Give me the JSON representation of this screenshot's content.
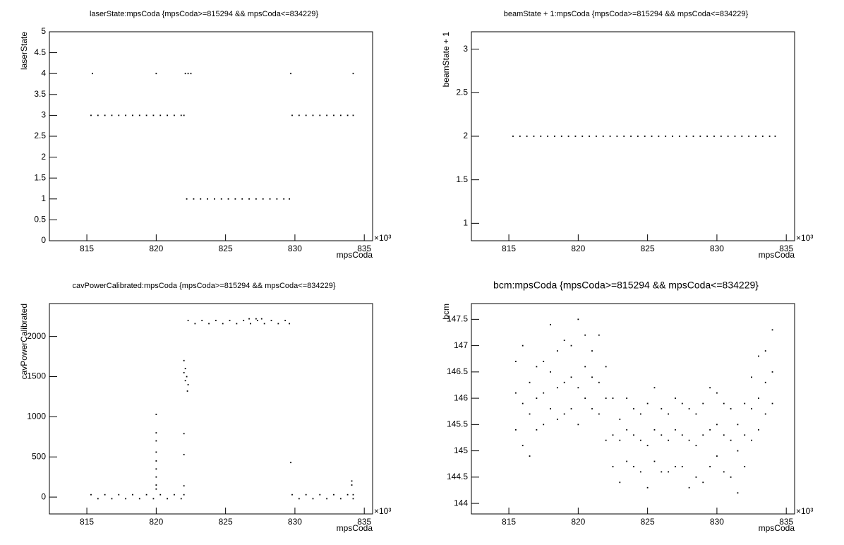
{
  "chart_data": [
    {
      "type": "scatter",
      "title": "laserState:mpsCoda {mpsCoda>=815294 && mpsCoda<=834229}",
      "x_label": "mpsCoda",
      "y_label": "laserState",
      "x_multiplier": "×10³",
      "color": "#000000",
      "xlim": [
        812.3,
        835.6
      ],
      "xticks": [
        815,
        820,
        825,
        830,
        835
      ],
      "ylim": [
        0,
        5
      ],
      "yticks": [
        0,
        0.5,
        1,
        1.5,
        2,
        2.5,
        3,
        3.5,
        4,
        4.5,
        5
      ],
      "x": [
        815.4,
        820.0,
        822.1,
        822.3,
        822.5,
        829.7,
        834.2,
        815.3,
        815.8,
        816.3,
        816.8,
        817.3,
        817.8,
        818.3,
        818.8,
        819.3,
        819.8,
        820.3,
        820.8,
        821.3,
        821.8,
        822.0,
        822.2,
        822.7,
        823.2,
        823.7,
        824.2,
        824.7,
        825.2,
        825.7,
        826.2,
        826.7,
        827.2,
        827.7,
        828.2,
        828.7,
        829.2,
        829.6,
        829.8,
        830.3,
        830.8,
        831.3,
        831.8,
        832.3,
        832.8,
        833.3,
        833.8,
        834.2
      ],
      "y": [
        4,
        4,
        4,
        4,
        4,
        4,
        4,
        3,
        3,
        3,
        3,
        3,
        3,
        3,
        3,
        3,
        3,
        3,
        3,
        3,
        3,
        3,
        1,
        1,
        1,
        1,
        1,
        1,
        1,
        1,
        1,
        1,
        1,
        1,
        1,
        1,
        1,
        1,
        3,
        3,
        3,
        3,
        3,
        3,
        3,
        3,
        3,
        3
      ]
    },
    {
      "type": "scatter",
      "title": "beamState + 1:mpsCoda {mpsCoda>=815294 && mpsCoda<=834229}",
      "x_label": "mpsCoda",
      "y_label": "beamState + 1",
      "x_multiplier": "×10³",
      "color": "#000000",
      "xlim": [
        812.3,
        835.6
      ],
      "xticks": [
        815,
        820,
        825,
        830,
        835
      ],
      "ylim": [
        0.8,
        3.2
      ],
      "yticks": [
        1,
        1.5,
        2,
        2.5,
        3
      ],
      "x": [
        815.3,
        815.8,
        816.3,
        816.8,
        817.3,
        817.8,
        818.3,
        818.8,
        819.3,
        819.8,
        820.3,
        820.8,
        821.3,
        821.8,
        822.3,
        822.8,
        823.3,
        823.8,
        824.3,
        824.8,
        825.3,
        825.8,
        826.3,
        826.8,
        827.3,
        827.8,
        828.3,
        828.8,
        829.3,
        829.8,
        830.3,
        830.8,
        831.3,
        831.8,
        832.3,
        832.8,
        833.3,
        833.8,
        834.2
      ],
      "y": [
        2,
        2,
        2,
        2,
        2,
        2,
        2,
        2,
        2,
        2,
        2,
        2,
        2,
        2,
        2,
        2,
        2,
        2,
        2,
        2,
        2,
        2,
        2,
        2,
        2,
        2,
        2,
        2,
        2,
        2,
        2,
        2,
        2,
        2,
        2,
        2,
        2,
        2,
        2
      ]
    },
    {
      "type": "scatter",
      "title": "cavPowerCalibrated:mpsCoda {mpsCoda>=815294 && mpsCoda<=834229}",
      "x_label": "mpsCoda",
      "y_label": "cavPowerCalibrated",
      "x_multiplier": "×10³",
      "color": "#000000",
      "xlim": [
        812.3,
        835.6
      ],
      "xticks": [
        815,
        820,
        825,
        830,
        835
      ],
      "ylim": [
        -210,
        2410
      ],
      "yticks": [
        0,
        500,
        1000,
        1500,
        2000
      ],
      "x": [
        815.3,
        816.3,
        817.3,
        818.3,
        819.3,
        820.3,
        821.3,
        815.8,
        816.8,
        817.8,
        818.8,
        819.8,
        820.8,
        821.8,
        822.0,
        829.8,
        830.8,
        831.8,
        832.8,
        833.8,
        830.3,
        831.3,
        832.3,
        833.3,
        834.2,
        834.2,
        822.3,
        823.3,
        824.3,
        825.3,
        826.3,
        827.3,
        828.3,
        829.3,
        822.8,
        823.8,
        824.8,
        825.8,
        826.8,
        827.8,
        828.8,
        829.6,
        826.7,
        827.2,
        827.6,
        822.0,
        822.1,
        822.2,
        822.3,
        822.25,
        822.1,
        822.0,
        820.0,
        820.0,
        820.0,
        820.0,
        820.0,
        820.0,
        820.0,
        820.0,
        820.0,
        822.0,
        822.0,
        822.0,
        829.7,
        834.1,
        834.1
      ],
      "y": [
        30,
        30,
        30,
        30,
        30,
        30,
        30,
        -20,
        -20,
        -20,
        -20,
        -20,
        -20,
        -20,
        30,
        30,
        30,
        30,
        30,
        30,
        -20,
        -20,
        -20,
        -20,
        -20,
        30,
        2200,
        2200,
        2200,
        2200,
        2200,
        2200,
        2200,
        2200,
        2160,
        2160,
        2160,
        2160,
        2160,
        2160,
        2160,
        2160,
        2220,
        2220,
        2220,
        1700,
        1600,
        1500,
        1400,
        1320,
        1450,
        1550,
        1030,
        800,
        700,
        560,
        450,
        350,
        250,
        150,
        100,
        790,
        530,
        140,
        430,
        200,
        150
      ]
    },
    {
      "type": "scatter",
      "title": "bcm:mpsCoda {mpsCoda>=815294 && mpsCoda<=834229}",
      "x_label": "mpsCoda",
      "y_label": "bcm",
      "x_multiplier": "×10³",
      "color": "#000000",
      "xlim": [
        812.3,
        835.6
      ],
      "xticks": [
        815,
        820,
        825,
        830,
        835
      ],
      "ylim": [
        143.8,
        147.8
      ],
      "yticks": [
        144,
        144.5,
        145,
        145.5,
        146,
        146.5,
        147,
        147.5
      ],
      "x": [
        815.5,
        815.5,
        815.5,
        816,
        816,
        816,
        816.5,
        816.5,
        816.5,
        817,
        817,
        817,
        817.5,
        817.5,
        817.5,
        818,
        818,
        818,
        818.5,
        818.5,
        818.5,
        819,
        819,
        819,
        819.5,
        819.5,
        819.5,
        820,
        820,
        820,
        820.5,
        820.5,
        820.5,
        821,
        821,
        821,
        821.5,
        821.5,
        821.5,
        822,
        822,
        822,
        822.5,
        822.5,
        822.5,
        823,
        823,
        823,
        823.5,
        823.5,
        823.5,
        824,
        824,
        824,
        824.5,
        824.5,
        824.5,
        825,
        825,
        825,
        825.5,
        825.5,
        825.5,
        826,
        826,
        826,
        826.5,
        826.5,
        826.5,
        827,
        827,
        827,
        827.5,
        827.5,
        827.5,
        828,
        828,
        828,
        828.5,
        828.5,
        828.5,
        829,
        829,
        829,
        829.5,
        829.5,
        829.5,
        830,
        830,
        830,
        830.5,
        830.5,
        830.5,
        831,
        831,
        831,
        831.5,
        831.5,
        831.5,
        832,
        832,
        832,
        832.5,
        832.5,
        832.5,
        833,
        833,
        833,
        833.5,
        833.5,
        833.5,
        834,
        834,
        834
      ],
      "y": [
        146.7,
        146.1,
        145.4,
        147.0,
        145.9,
        145.1,
        146.3,
        145.7,
        144.9,
        146.6,
        146.0,
        145.4,
        146.7,
        146.1,
        145.5,
        147.4,
        146.5,
        145.8,
        146.9,
        146.2,
        145.6,
        147.1,
        146.3,
        145.7,
        147.0,
        146.4,
        145.8,
        147.5,
        146.2,
        145.5,
        147.2,
        146.6,
        146.0,
        146.9,
        146.4,
        145.8,
        147.2,
        146.3,
        145.7,
        146.6,
        146.0,
        145.2,
        146.0,
        145.3,
        144.7,
        145.6,
        145.2,
        144.4,
        146.0,
        145.4,
        144.8,
        145.8,
        145.3,
        144.7,
        145.7,
        145.2,
        144.6,
        145.9,
        145.1,
        144.3,
        146.2,
        145.4,
        144.8,
        145.8,
        145.3,
        144.6,
        145.7,
        145.2,
        144.6,
        146.0,
        145.4,
        144.7,
        145.9,
        145.3,
        144.7,
        145.8,
        145.2,
        144.3,
        145.7,
        145.1,
        144.5,
        145.9,
        145.3,
        144.4,
        146.2,
        145.4,
        144.7,
        146.1,
        145.5,
        144.9,
        145.9,
        145.3,
        144.6,
        145.8,
        145.2,
        144.5,
        145.5,
        145.0,
        144.2,
        145.9,
        145.3,
        144.7,
        146.4,
        145.8,
        145.2,
        146.8,
        146.0,
        145.4,
        146.9,
        146.3,
        145.7,
        147.3,
        146.5,
        145.9
      ]
    }
  ]
}
